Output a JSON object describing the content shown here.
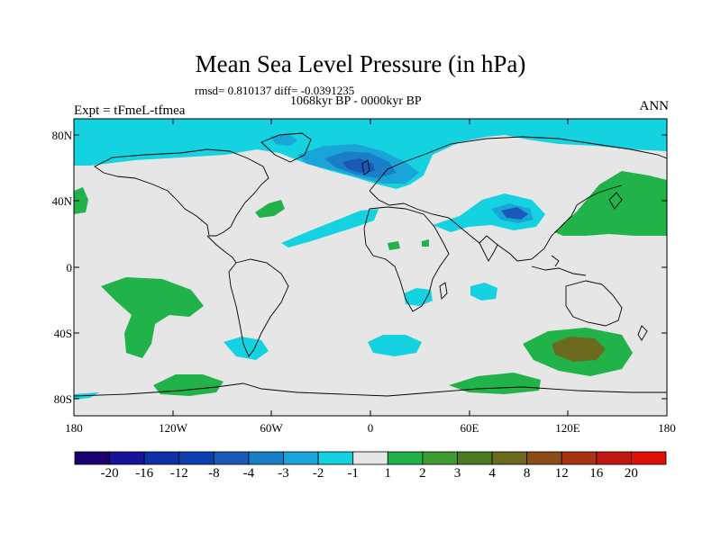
{
  "title": "Mean Sea Level Pressure (in hPa)",
  "stats_line": "rmsd= 0.810137 diff= -0.0391235",
  "period": "1068kyr BP - 0000kyr BP",
  "experiment": "Expt = tFmeL-tfmea",
  "season": "ANN",
  "map": {
    "projection": "cylindrical-equidistant",
    "lon_range": [
      -180,
      180
    ],
    "lat_range": [
      -90,
      90
    ],
    "y_ticks": [
      "80N",
      "40N",
      "0",
      "40S",
      "80S"
    ],
    "x_ticks": [
      "180",
      "120W",
      "60W",
      "0",
      "60E",
      "120E",
      "180"
    ],
    "field": "mean sea level pressure anomaly",
    "units": "hPa"
  },
  "colorbar": {
    "labels": [
      "-20",
      "-16",
      "-12",
      "-8",
      "-4",
      "-3",
      "-2",
      "-1",
      "1",
      "2",
      "3",
      "4",
      "8",
      "12",
      "16",
      "20"
    ],
    "colors": [
      "#1a0070",
      "#16139a",
      "#1030a8",
      "#0e3fb0",
      "#1a59b8",
      "#1a7ec7",
      "#1aa5d8",
      "#14d2e0",
      "#e6e6e6",
      "#22b24a",
      "#3e9b32",
      "#4b7a22",
      "#6b6a1e",
      "#8a4d1a",
      "#a83214",
      "#c01810",
      "#e01008"
    ]
  },
  "colors": {
    "neutral": "#e6e6e6",
    "cyan": "#14d2e0",
    "light_blue": "#1aa5d8",
    "mid_blue": "#1a7ec7",
    "deep_blue": "#1a59b8",
    "green": "#22b24a",
    "olive": "#6b6a1e"
  }
}
